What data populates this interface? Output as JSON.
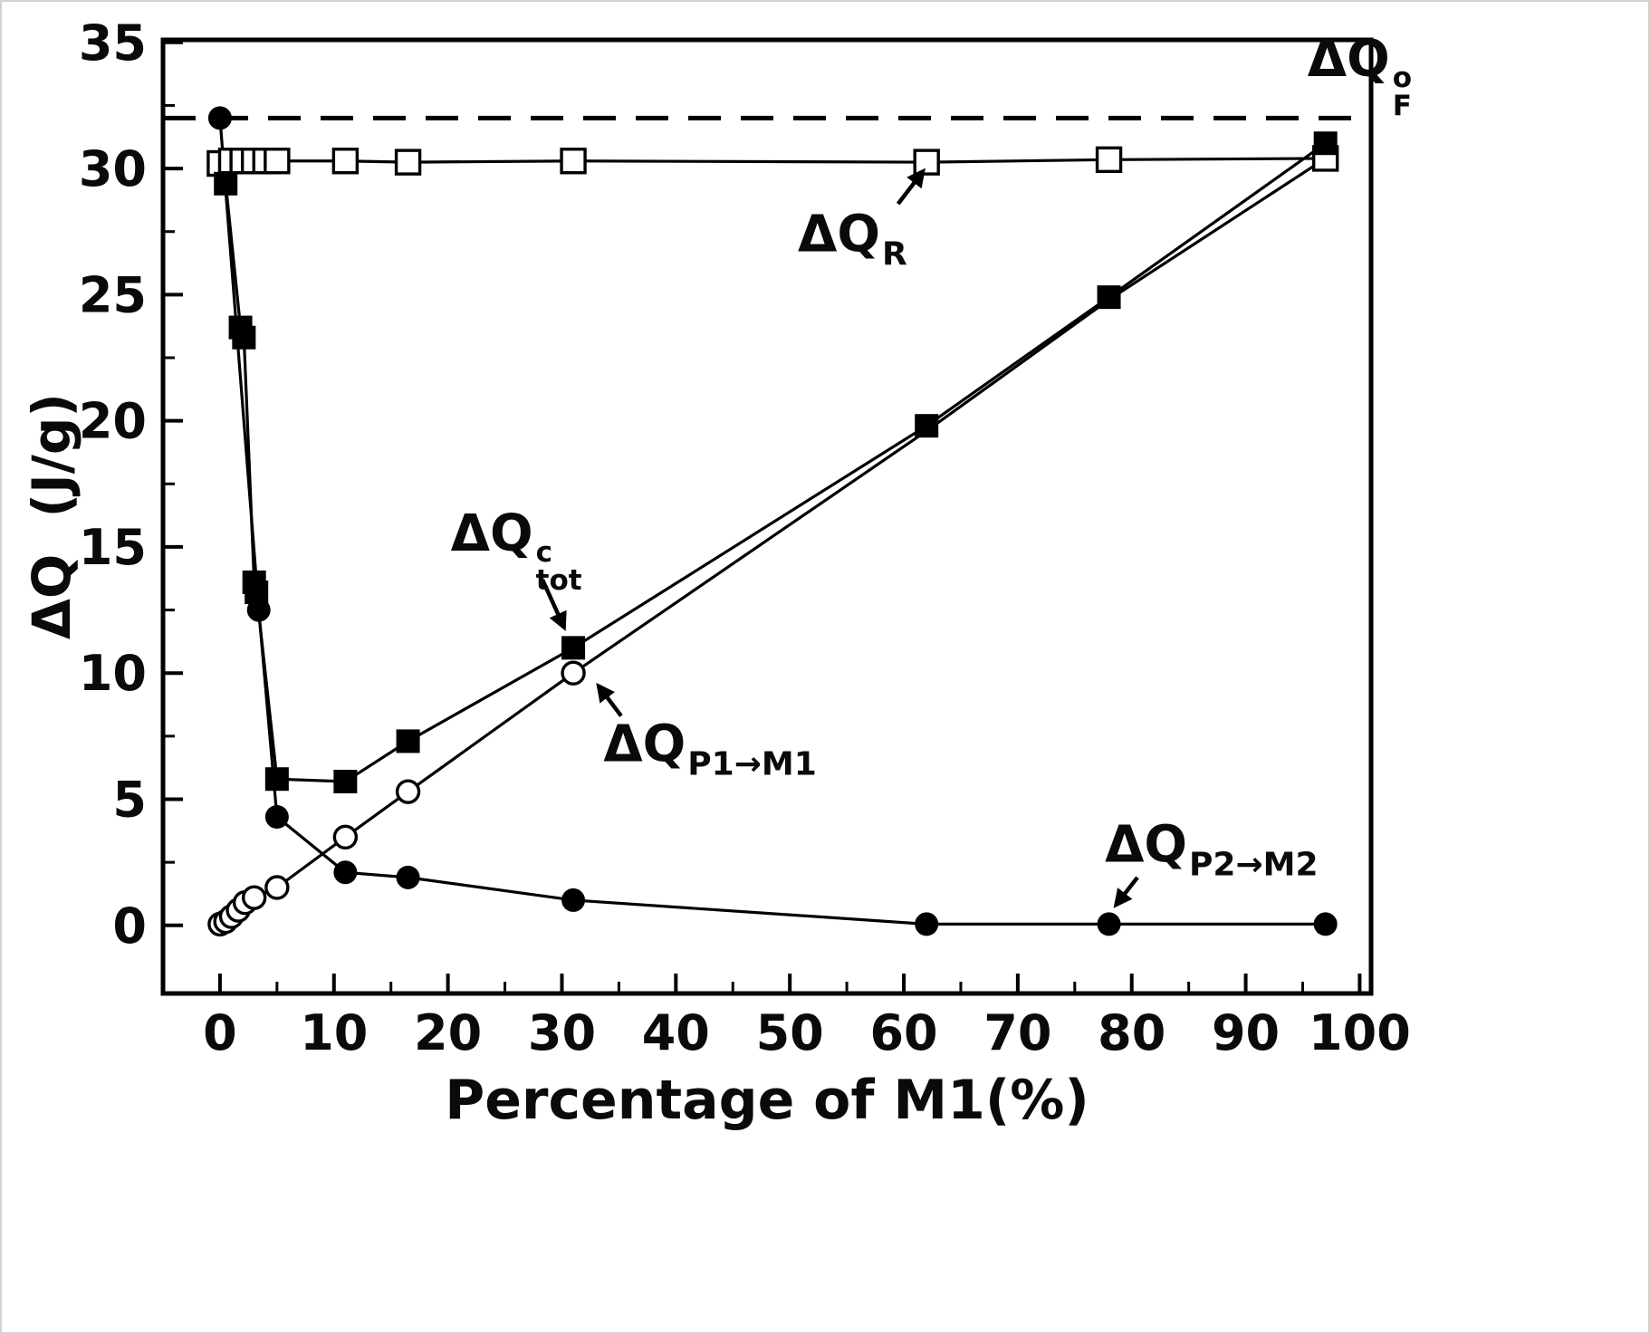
{
  "figure": {
    "background": "#ffffff",
    "border_color": "#d2d2d2",
    "line_color": "#000000",
    "text_color": "#0a0a0a"
  },
  "chart_data": {
    "type": "line",
    "title": "",
    "xlabel": "Percentage of M1(%)",
    "ylabel": "ΔQ  (J/g)",
    "xlim": [
      -5,
      101
    ],
    "ylim": [
      -2.7,
      35.1
    ],
    "x_ticks": [
      0,
      10,
      20,
      30,
      40,
      50,
      60,
      70,
      80,
      90,
      100
    ],
    "y_ticks": [
      0,
      5,
      10,
      15,
      20,
      25,
      30,
      35
    ],
    "x_minor_ticks": [
      5,
      15,
      25,
      35,
      45,
      55,
      65,
      75,
      85,
      95
    ],
    "y_minor_ticks": [
      2.5,
      7.5,
      12.5,
      17.5,
      22.5,
      27.5,
      32.5
    ],
    "grid": false,
    "legend_position": "none",
    "reference_line": {
      "y": 32,
      "style": "dashed",
      "label": "ΔQ_F^o"
    },
    "series": [
      {
        "id": "QR",
        "label": "ΔQ_R",
        "marker": "open-square",
        "x": [
          0,
          1,
          2,
          3,
          4,
          5,
          11,
          16.5,
          31,
          62,
          78,
          97
        ],
        "y": [
          30.2,
          30.3,
          30.3,
          30.3,
          30.3,
          30.3,
          30.3,
          30.25,
          30.3,
          30.25,
          30.35,
          30.4
        ]
      },
      {
        "id": "QP1",
        "label": "ΔQ_P1→M1",
        "marker": "open-circle",
        "markers_until_x": 35,
        "x": [
          0,
          0.5,
          1,
          1.6,
          2.2,
          3,
          5,
          11,
          16.5,
          31,
          62,
          78,
          97
        ],
        "y": [
          0.05,
          0.15,
          0.35,
          0.6,
          0.9,
          1.1,
          1.5,
          3.5,
          5.3,
          10.0,
          19.6,
          24.8,
          30.4
        ]
      },
      {
        "id": "Qtot",
        "label": "ΔQ_tot^c",
        "marker": "filled-square",
        "x": [
          0.5,
          1.8,
          2.1,
          3.0,
          3.2,
          5,
          11,
          16.5,
          31,
          62,
          78,
          97
        ],
        "y": [
          29.4,
          23.7,
          23.3,
          13.6,
          13.2,
          5.8,
          5.7,
          7.3,
          11.0,
          19.8,
          24.9,
          31.0
        ]
      },
      {
        "id": "QP2",
        "label": "ΔQ_P2→M2",
        "marker": "filled-circle",
        "x": [
          0,
          3.4,
          5,
          11,
          16.5,
          31,
          62,
          78,
          97
        ],
        "y": [
          32.0,
          12.5,
          4.3,
          2.1,
          1.9,
          1.0,
          0.05,
          0.05,
          0.05
        ]
      }
    ],
    "annotations": [
      {
        "id": "QF",
        "base": "ΔQ",
        "sup": "o",
        "sub": "F",
        "x": 100,
        "y": 33.7,
        "arrow": null
      },
      {
        "id": "QR",
        "base": "ΔQ",
        "sup": "",
        "sub": "R",
        "x": 55.5,
        "y": 27.2,
        "arrow": {
          "x1": 59.5,
          "y1": 28.6,
          "x2": 61.7,
          "y2": 29.9
        }
      },
      {
        "id": "Qtot",
        "base": "ΔQ",
        "sup": "c",
        "sub": "tot",
        "x": 26,
        "y": 14.9,
        "arrow": {
          "x1": 28.3,
          "y1": 13.7,
          "x2": 30.2,
          "y2": 11.8
        }
      },
      {
        "id": "QP1",
        "base": "ΔQ",
        "sup": "",
        "sub": "P1→M1",
        "x": 43,
        "y": 7.0,
        "arrow": {
          "x1": 35.2,
          "y1": 8.3,
          "x2": 33.2,
          "y2": 9.5
        }
      },
      {
        "id": "QP2",
        "base": "ΔQ",
        "sup": "",
        "sub": "P2→M2",
        "x": 87,
        "y": 3.0,
        "arrow": {
          "x1": 80.5,
          "y1": 1.9,
          "x2": 78.6,
          "y2": 0.8
        }
      }
    ]
  }
}
